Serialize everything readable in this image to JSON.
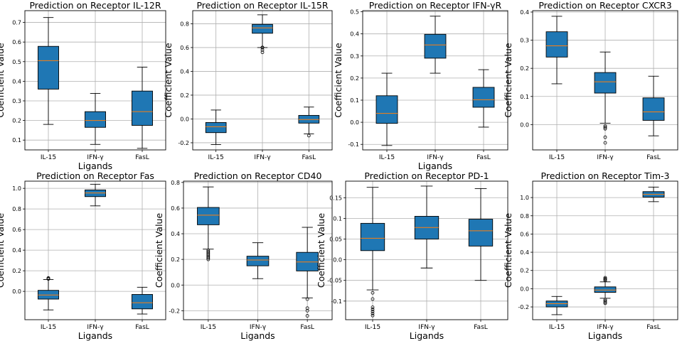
{
  "chart_data": [
    {
      "type": "boxplot",
      "title": "Prediction on Receptor IL-12R",
      "xlabel": "Ligands",
      "ylabel": "Coefficient Value",
      "categories": [
        "IL-15",
        "IFN-γ",
        "FasL"
      ],
      "yticks": [
        0.1,
        0.2,
        0.3,
        0.4,
        0.5,
        0.6,
        0.7
      ],
      "ylim": [
        0.05,
        0.76
      ],
      "grid": true,
      "boxes": [
        {
          "whislo": 0.18,
          "q1": 0.36,
          "med": 0.505,
          "q3": 0.578,
          "whishi": 0.725,
          "fliers": []
        },
        {
          "whislo": 0.078,
          "q1": 0.165,
          "med": 0.2,
          "q3": 0.245,
          "whishi": 0.338,
          "fliers": []
        },
        {
          "whislo": 0.058,
          "q1": 0.175,
          "med": 0.245,
          "q3": 0.35,
          "whishi": 0.472,
          "fliers": []
        }
      ]
    },
    {
      "type": "boxplot",
      "title": "Prediction on Receptor IL-15R",
      "xlabel": "",
      "ylabel": "Coefficient Value",
      "categories": [
        "IL-15",
        "IFN-γ",
        "FasL"
      ],
      "yticks": [
        -0.2,
        0.0,
        0.2,
        0.4,
        0.6,
        0.8
      ],
      "ylim": [
        -0.26,
        0.91
      ],
      "grid": true,
      "boxes": [
        {
          "whislo": -0.215,
          "q1": -0.115,
          "med": -0.065,
          "q3": -0.03,
          "whishi": 0.075,
          "fliers": []
        },
        {
          "whislo": 0.6,
          "q1": 0.72,
          "med": 0.765,
          "q3": 0.795,
          "whishi": 0.875,
          "fliers": [
            0.6,
            0.6,
            0.6,
            0.58,
            0.56
          ]
        },
        {
          "whislo": -0.125,
          "q1": -0.035,
          "med": -0.005,
          "q3": 0.03,
          "whishi": 0.1,
          "fliers": [
            -0.14
          ]
        }
      ]
    },
    {
      "type": "boxplot",
      "title": "Prediction on Receptor IFN-γR",
      "xlabel": "Ligands",
      "ylabel": "Coefficient Value",
      "categories": [
        "IL-15",
        "IFN-γ",
        "FasL"
      ],
      "yticks": [
        -0.1,
        0.0,
        0.1,
        0.2,
        0.3,
        0.4,
        0.5
      ],
      "ylim": [
        -0.125,
        0.505
      ],
      "grid": true,
      "boxes": [
        {
          "whislo": -0.105,
          "q1": -0.005,
          "med": 0.04,
          "q3": 0.12,
          "whishi": 0.222,
          "fliers": []
        },
        {
          "whislo": 0.222,
          "q1": 0.29,
          "med": 0.35,
          "q3": 0.398,
          "whishi": 0.48,
          "fliers": []
        },
        {
          "whislo": -0.022,
          "q1": 0.068,
          "med": 0.102,
          "q3": 0.158,
          "whishi": 0.238,
          "fliers": []
        }
      ]
    },
    {
      "type": "boxplot",
      "title": "Prediction on Receptor CXCR3",
      "xlabel": "",
      "ylabel": "Coefficient Value",
      "categories": [
        "IL-15",
        "IFN-γ",
        "FasL"
      ],
      "yticks": [
        0.0,
        0.1,
        0.2,
        0.3,
        0.4
      ],
      "ylim": [
        -0.09,
        0.405
      ],
      "grid": true,
      "boxes": [
        {
          "whislo": 0.145,
          "q1": 0.24,
          "med": 0.28,
          "q3": 0.33,
          "whishi": 0.385,
          "fliers": []
        },
        {
          "whislo": 0.005,
          "q1": 0.112,
          "med": 0.152,
          "q3": 0.185,
          "whishi": 0.258,
          "fliers": [
            -0.005,
            -0.01,
            -0.015,
            -0.045,
            -0.065
          ]
        },
        {
          "whislo": -0.04,
          "q1": 0.015,
          "med": 0.045,
          "q3": 0.095,
          "whishi": 0.172,
          "fliers": []
        }
      ]
    },
    {
      "type": "boxplot",
      "title": "Prediction on Receptor Fas",
      "xlabel": "Ligands",
      "ylabel": "Coefficient Value",
      "categories": [
        "IL-15",
        "IFN-γ",
        "FasL"
      ],
      "yticks": [
        0.0,
        0.2,
        0.4,
        0.6,
        0.8,
        1.0
      ],
      "ylim": [
        -0.275,
        1.07
      ],
      "grid": true,
      "boxes": [
        {
          "whislo": -0.18,
          "q1": -0.075,
          "med": -0.035,
          "q3": 0.01,
          "whishi": 0.115,
          "fliers": [
            0.12,
            0.125,
            0.13
          ]
        },
        {
          "whislo": 0.83,
          "q1": 0.92,
          "med": 0.955,
          "q3": 0.985,
          "whishi": 1.04,
          "fliers": []
        },
        {
          "whislo": -0.22,
          "q1": -0.17,
          "med": -0.11,
          "q3": -0.03,
          "whishi": 0.04,
          "fliers": []
        }
      ]
    },
    {
      "type": "boxplot",
      "title": "Prediction on Receptor CD40",
      "xlabel": "Ligands",
      "ylabel": "Coefficient Value",
      "categories": [
        "IL-15",
        "IFN-γ",
        "FasL"
      ],
      "yticks": [
        -0.2,
        0.0,
        0.2,
        0.4,
        0.6,
        0.8
      ],
      "ylim": [
        -0.27,
        0.81
      ],
      "grid": true,
      "boxes": [
        {
          "whislo": 0.28,
          "q1": 0.47,
          "med": 0.545,
          "q3": 0.605,
          "whishi": 0.765,
          "fliers": [
            0.27,
            0.26,
            0.25,
            0.24,
            0.23,
            0.22,
            0.21,
            0.2
          ]
        },
        {
          "whislo": 0.05,
          "q1": 0.15,
          "med": 0.195,
          "q3": 0.225,
          "whishi": 0.33,
          "fliers": []
        },
        {
          "whislo": -0.1,
          "q1": 0.11,
          "med": 0.18,
          "q3": 0.255,
          "whishi": 0.45,
          "fliers": [
            -0.11,
            -0.18,
            -0.2,
            -0.24
          ]
        }
      ]
    },
    {
      "type": "boxplot",
      "title": "Prediction on Receptor PD-1",
      "xlabel": "Ligands",
      "ylabel": "Coefficient Value",
      "categories": [
        "IL-15",
        "IFN-γ",
        "FasL"
      ],
      "yticks": [
        -0.1,
        -0.05,
        0.0,
        0.05,
        0.1,
        0.15
      ],
      "ylim": [
        -0.145,
        0.19
      ],
      "grid": true,
      "boxes": [
        {
          "whislo": -0.073,
          "q1": 0.022,
          "med": 0.052,
          "q3": 0.088,
          "whishi": 0.175,
          "fliers": [
            -0.08,
            -0.095,
            -0.115,
            -0.12,
            -0.125,
            -0.13,
            -0.135
          ]
        },
        {
          "whislo": -0.02,
          "q1": 0.05,
          "med": 0.078,
          "q3": 0.105,
          "whishi": 0.178,
          "fliers": []
        },
        {
          "whislo": -0.05,
          "q1": 0.033,
          "med": 0.07,
          "q3": 0.098,
          "whishi": 0.172,
          "fliers": []
        }
      ]
    },
    {
      "type": "boxplot",
      "title": "Prediction on Receptor Tim-3",
      "xlabel": "Ligands",
      "ylabel": "Coefficient Value",
      "categories": [
        "IL-15",
        "IFN-γ",
        "FasL"
      ],
      "yticks": [
        -0.2,
        0.0,
        0.2,
        0.4,
        0.6,
        0.8,
        1.0
      ],
      "ylim": [
        -0.34,
        1.18
      ],
      "grid": true,
      "boxes": [
        {
          "whislo": -0.285,
          "q1": -0.2,
          "med": -0.165,
          "q3": -0.135,
          "whishi": -0.085,
          "fliers": []
        },
        {
          "whislo": -0.105,
          "q1": -0.04,
          "med": -0.015,
          "q3": 0.02,
          "whishi": 0.075,
          "fliers": [
            0.12,
            0.11,
            0.1,
            0.09,
            -0.12,
            -0.135,
            -0.15,
            -0.16
          ]
        },
        {
          "whislo": 0.955,
          "q1": 1.005,
          "med": 1.035,
          "q3": 1.065,
          "whishi": 1.115,
          "fliers": []
        }
      ]
    }
  ],
  "colors": {
    "box_fill": "#1f77b4",
    "median": "#ff7f0e",
    "grid": "#b0b0b0",
    "axis": "#000000"
  }
}
